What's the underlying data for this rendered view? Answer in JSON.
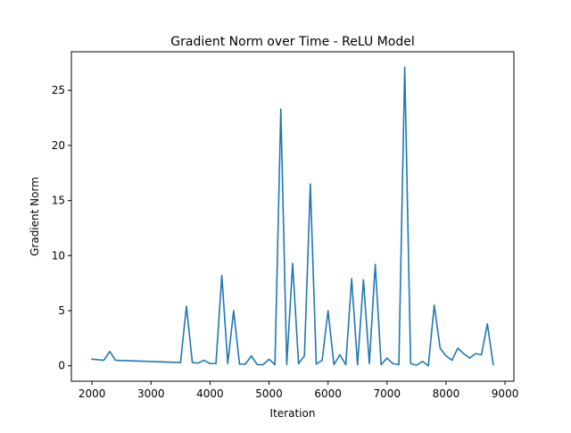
{
  "chart_data": {
    "type": "line",
    "title": "Gradient Norm over Time - ReLU Model",
    "xlabel": "Iteration",
    "ylabel": "Gradient Norm",
    "xlim": [
      1650,
      9150
    ],
    "ylim": [
      -1.4,
      28.5
    ],
    "xticks": [
      2000,
      3000,
      4000,
      5000,
      6000,
      7000,
      8000,
      9000
    ],
    "yticks": [
      0,
      5,
      10,
      15,
      20,
      25
    ],
    "grid": false,
    "legend": "none",
    "line_color": "#1f77b4",
    "series": [
      {
        "x": [
          2000,
          2200,
          2300,
          2400,
          3500,
          3600,
          3700,
          3800,
          3900,
          4000,
          4100,
          4200,
          4300,
          4400,
          4500,
          4600,
          4700,
          4800,
          4900,
          5000,
          5100,
          5200,
          5300,
          5400,
          5500,
          5600,
          5700,
          5800,
          5900,
          6000,
          6100,
          6200,
          6300,
          6400,
          6500,
          6600,
          6700,
          6800,
          6900,
          7000,
          7100,
          7200,
          7300,
          7400,
          7500,
          7600,
          7700,
          7800,
          7900,
          8000,
          8100,
          8200,
          8300,
          8400,
          8500,
          8600,
          8700,
          8800
        ],
        "y": [
          0.6,
          0.5,
          1.3,
          0.5,
          0.3,
          5.4,
          0.3,
          0.25,
          0.5,
          0.2,
          0.2,
          8.2,
          0.2,
          5.0,
          0.15,
          0.15,
          0.9,
          0.1,
          0.1,
          0.6,
          0.1,
          23.3,
          0.1,
          9.3,
          0.2,
          0.9,
          16.5,
          0.15,
          0.5,
          5.0,
          0.1,
          1.0,
          0.1,
          7.9,
          0.1,
          7.8,
          0.2,
          9.2,
          0.1,
          0.7,
          0.2,
          0.1,
          27.1,
          0.2,
          0.05,
          0.4,
          0.0,
          5.5,
          1.6,
          0.9,
          0.5,
          1.6,
          1.1,
          0.7,
          1.1,
          1.0,
          3.8,
          0.1
        ]
      }
    ]
  }
}
